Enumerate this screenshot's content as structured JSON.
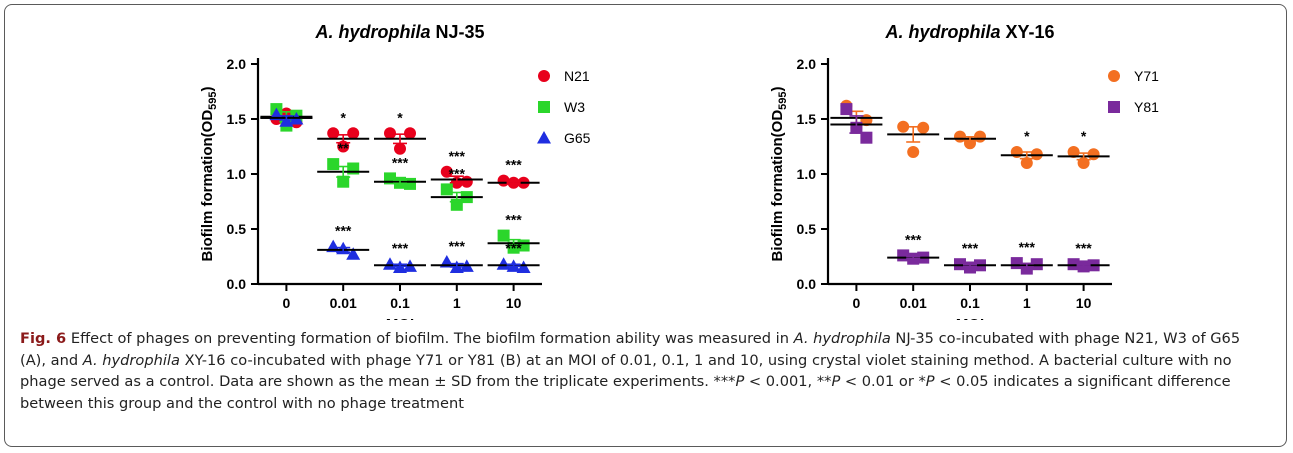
{
  "chart_data": [
    {
      "type": "scatter",
      "title_italic": "A. hydrophila",
      "title_strain": "NJ-35",
      "xlabel": "MOI",
      "ylabel_main": "Biofilm formation(OD",
      "ylabel_sub": "595",
      "ylabel_close": ")",
      "categories": [
        "0",
        "0.01",
        "0.1",
        "1",
        "10"
      ],
      "ylim": [
        0.0,
        2.0
      ],
      "yticks": [
        "0.0",
        "0.5",
        "1.0",
        "1.5",
        "2.0"
      ],
      "legend_position": "top-right",
      "series": [
        {
          "name": "N21",
          "marker": "circle",
          "color": "#e8001c",
          "values": [
            [
              1.5,
              1.55,
              1.47
            ],
            [
              1.37,
              1.25,
              1.37
            ],
            [
              1.37,
              1.23,
              1.37
            ],
            [
              1.02,
              0.92,
              0.93
            ],
            [
              0.94,
              0.92,
              0.92
            ]
          ],
          "means": [
            1.51,
            1.32,
            1.32,
            0.95,
            0.92
          ],
          "sig": [
            "",
            "*",
            "*",
            "***",
            "***"
          ]
        },
        {
          "name": "W3",
          "marker": "square",
          "color": "#2bd62b",
          "values": [
            [
              1.59,
              1.44,
              1.53
            ],
            [
              1.09,
              0.93,
              1.05
            ],
            [
              0.96,
              0.92,
              0.91
            ],
            [
              0.86,
              0.72,
              0.79
            ],
            [
              0.44,
              0.33,
              0.35
            ]
          ],
          "means": [
            1.52,
            1.02,
            0.93,
            0.79,
            0.37
          ],
          "sig": [
            "",
            "**",
            "***",
            "***",
            "***"
          ]
        },
        {
          "name": "G65",
          "marker": "triangle",
          "color": "#1f2ee0",
          "values": [
            [
              1.54,
              1.48,
              1.5
            ],
            [
              0.34,
              0.32,
              0.27
            ],
            [
              0.18,
              0.15,
              0.16
            ],
            [
              0.2,
              0.15,
              0.16
            ],
            [
              0.18,
              0.16,
              0.15
            ]
          ],
          "means": [
            1.51,
            0.31,
            0.17,
            0.17,
            0.17
          ],
          "sig": [
            "",
            "***",
            "***",
            "***",
            "***"
          ]
        }
      ]
    },
    {
      "type": "scatter",
      "title_italic": "A. hydrophila",
      "title_strain": "XY-16",
      "xlabel": "MOI",
      "ylabel_main": "Biofilm formation(OD",
      "ylabel_sub": "595",
      "ylabel_close": ")",
      "categories": [
        "0",
        "0.01",
        "0.1",
        "1",
        "10"
      ],
      "ylim": [
        0.0,
        2.0
      ],
      "yticks": [
        "0.0",
        "0.5",
        "1.0",
        "1.5",
        "2.0"
      ],
      "legend_position": "top-right",
      "series": [
        {
          "name": "Y71",
          "marker": "circle",
          "color": "#f36f21",
          "values": [
            [
              1.62,
              1.42,
              1.49
            ],
            [
              1.43,
              1.2,
              1.42
            ],
            [
              1.34,
              1.28,
              1.34
            ],
            [
              1.2,
              1.1,
              1.18
            ],
            [
              1.2,
              1.1,
              1.18
            ]
          ],
          "means": [
            1.51,
            1.36,
            1.32,
            1.17,
            1.16
          ],
          "sig": [
            "",
            "",
            "",
            "*",
            "*"
          ]
        },
        {
          "name": "Y81",
          "marker": "square",
          "color": "#7a2a9c",
          "values": [
            [
              1.59,
              1.42,
              1.33
            ],
            [
              0.26,
              0.23,
              0.24
            ],
            [
              0.18,
              0.15,
              0.17
            ],
            [
              0.19,
              0.14,
              0.18
            ],
            [
              0.18,
              0.16,
              0.17
            ]
          ],
          "means": [
            1.45,
            0.24,
            0.17,
            0.17,
            0.17
          ],
          "sig": [
            "",
            "***",
            "***",
            "***",
            "***"
          ]
        }
      ]
    }
  ],
  "caption": {
    "fig_label": "Fig. 6",
    "t1": " Effect of phages on preventing formation of biofilm. The biofilm formation ability was measured in ",
    "i1": "A. hydrophila",
    "t2": " NJ-35 co-incubated with phage N21, W3 of G65 (A), and ",
    "i2": "A. hydrophila",
    "t3": " XY-16 co-incubated with phage Y71 or Y81 (B) at an MOI of 0.01, 0.1, 1 and 10, using crystal violet staining method. A bacterial culture with no phage served as a control. Data are shown as the mean ± SD from the triplicate experiments. ***",
    "p1": "P",
    "t4": " < 0.001, **",
    "p2": "P",
    "t5": " < 0.01 or *",
    "p3": "P",
    "t6": " < 0.05 indicates a significant difference between this group and the control with no phage treatment"
  }
}
